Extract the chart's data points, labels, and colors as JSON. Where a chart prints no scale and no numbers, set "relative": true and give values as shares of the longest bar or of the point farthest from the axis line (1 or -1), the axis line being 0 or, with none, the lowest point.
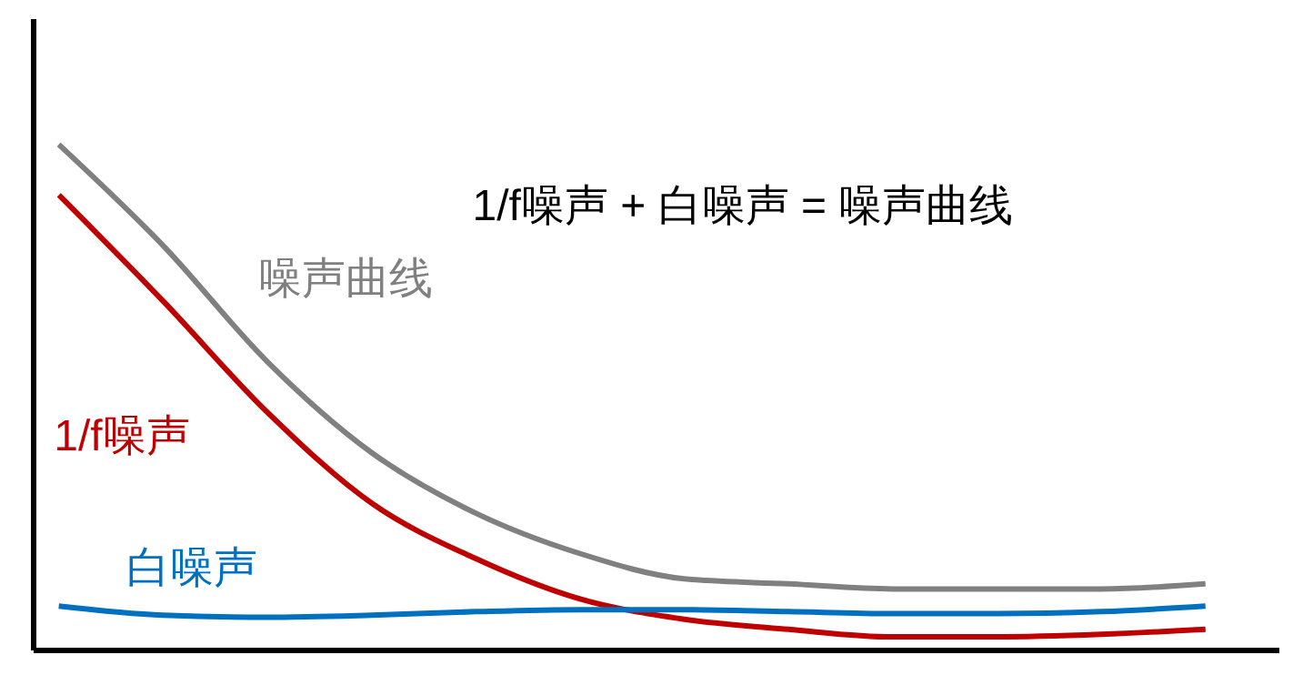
{
  "chart_data": {
    "type": "line",
    "relative": true,
    "annotations": [
      "1/f噪声 + 白噪声 = 噪声曲线"
    ],
    "categories": [
      null,
      null,
      null,
      null,
      null,
      null,
      null,
      null,
      null,
      null,
      null,
      null
    ],
    "series": [
      {
        "name": "噪声曲线",
        "color": "#808080",
        "values": [
          1,
          0.8,
          0.57,
          0.39,
          0.27,
          0.19,
          0.14,
          0.13,
          0.12,
          0.12,
          0.12,
          0.13
        ]
      },
      {
        "name": "1/f噪声",
        "color": "#c00000",
        "values": [
          0.9,
          0.69,
          0.47,
          0.29,
          0.18,
          0.1,
          0.06,
          0.04,
          0.025,
          0.025,
          0.03,
          0.04
        ]
      },
      {
        "name": "白噪声",
        "color": "#0070c0",
        "values": [
          0.086,
          0.068,
          0.064,
          0.068,
          0.075,
          0.079,
          0.079,
          0.075,
          0.071,
          0.071,
          0.075,
          0.086
        ]
      }
    ],
    "grid": false,
    "legend": false,
    "marker": "none",
    "line_style": "solid"
  }
}
